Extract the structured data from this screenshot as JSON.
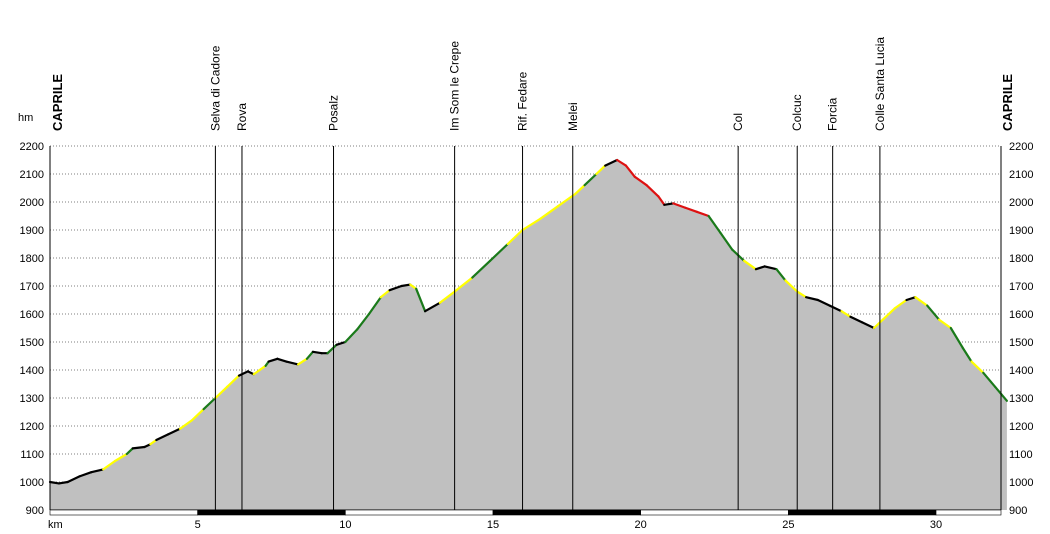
{
  "chart_data": {
    "type": "area",
    "ylabel": "hm",
    "xlabel": "km",
    "xlim": [
      0,
      32.2
    ],
    "ylim": [
      900,
      2200
    ],
    "y_ticks": [
      900,
      1000,
      1100,
      1200,
      1300,
      1400,
      1500,
      1600,
      1700,
      1800,
      1900,
      2000,
      2100,
      2200
    ],
    "x_ticks": [
      5,
      10,
      15,
      20,
      25,
      30
    ],
    "grid": true,
    "colors": {
      "fill": "#c0c0c0",
      "paved": "#000000",
      "easy": "#ffff00",
      "medium": "#1a7a1a",
      "hard": "#dd1111"
    },
    "start_label": "CAPRILE",
    "end_label": "CAPRILE",
    "waypoints": [
      {
        "name": "Selva di Cadore",
        "km": 5.6
      },
      {
        "name": "Rova",
        "km": 6.5
      },
      {
        "name": "Posalz",
        "km": 9.6
      },
      {
        "name": "Im Som le Crepe",
        "km": 13.7
      },
      {
        "name": "Rif. Fedare",
        "km": 16.0
      },
      {
        "name": "Melei",
        "km": 17.7
      },
      {
        "name": "Col",
        "km": 23.3
      },
      {
        "name": "Colcuc",
        "km": 25.3
      },
      {
        "name": "Forcia",
        "km": 26.5
      },
      {
        "name": "Colle Santa Lucia",
        "km": 28.1
      }
    ],
    "profile": [
      [
        0.0,
        1000
      ],
      [
        0.3,
        995
      ],
      [
        0.6,
        1000
      ],
      [
        1.0,
        1020
      ],
      [
        1.4,
        1035
      ],
      [
        1.8,
        1045
      ],
      [
        2.2,
        1075
      ],
      [
        2.6,
        1100
      ],
      [
        2.8,
        1120
      ],
      [
        3.2,
        1125
      ],
      [
        3.4,
        1135
      ],
      [
        3.6,
        1150
      ],
      [
        4.0,
        1170
      ],
      [
        4.4,
        1190
      ],
      [
        4.8,
        1220
      ],
      [
        5.2,
        1260
      ],
      [
        5.6,
        1300
      ],
      [
        6.0,
        1340
      ],
      [
        6.4,
        1380
      ],
      [
        6.7,
        1395
      ],
      [
        6.9,
        1385
      ],
      [
        7.1,
        1400
      ],
      [
        7.3,
        1415
      ],
      [
        7.4,
        1430
      ],
      [
        7.7,
        1440
      ],
      [
        8.0,
        1430
      ],
      [
        8.4,
        1420
      ],
      [
        8.7,
        1440
      ],
      [
        8.9,
        1465
      ],
      [
        9.2,
        1460
      ],
      [
        9.4,
        1460
      ],
      [
        9.7,
        1490
      ],
      [
        10.0,
        1500
      ],
      [
        10.4,
        1545
      ],
      [
        10.8,
        1600
      ],
      [
        11.2,
        1660
      ],
      [
        11.5,
        1685
      ],
      [
        11.9,
        1700
      ],
      [
        12.2,
        1705
      ],
      [
        12.4,
        1690
      ],
      [
        12.7,
        1610
      ],
      [
        13.2,
        1640
      ],
      [
        13.7,
        1680
      ],
      [
        14.3,
        1730
      ],
      [
        14.9,
        1790
      ],
      [
        15.5,
        1850
      ],
      [
        16.0,
        1900
      ],
      [
        16.6,
        1940
      ],
      [
        17.2,
        1985
      ],
      [
        17.4,
        2000
      ],
      [
        17.8,
        2030
      ],
      [
        18.1,
        2060
      ],
      [
        18.5,
        2100
      ],
      [
        18.8,
        2130
      ],
      [
        19.2,
        2150
      ],
      [
        19.5,
        2130
      ],
      [
        19.8,
        2090
      ],
      [
        20.2,
        2060
      ],
      [
        20.6,
        2020
      ],
      [
        20.8,
        1990
      ],
      [
        21.1,
        1995
      ],
      [
        21.5,
        1980
      ],
      [
        21.9,
        1965
      ],
      [
        22.3,
        1950
      ],
      [
        22.7,
        1890
      ],
      [
        23.1,
        1830
      ],
      [
        23.5,
        1790
      ],
      [
        23.9,
        1760
      ],
      [
        24.2,
        1770
      ],
      [
        24.6,
        1760
      ],
      [
        24.9,
        1720
      ],
      [
        25.3,
        1680
      ],
      [
        25.6,
        1660
      ],
      [
        26.0,
        1650
      ],
      [
        26.4,
        1630
      ],
      [
        26.8,
        1610
      ],
      [
        27.1,
        1590
      ],
      [
        27.5,
        1570
      ],
      [
        27.9,
        1550
      ],
      [
        28.2,
        1580
      ],
      [
        28.6,
        1620
      ],
      [
        29.0,
        1650
      ],
      [
        29.3,
        1660
      ],
      [
        29.7,
        1630
      ],
      [
        30.1,
        1580
      ],
      [
        30.5,
        1550
      ],
      [
        30.9,
        1480
      ],
      [
        31.2,
        1430
      ],
      [
        31.6,
        1390
      ],
      [
        32.0,
        1340
      ],
      [
        32.4,
        1290
      ]
    ]
  }
}
